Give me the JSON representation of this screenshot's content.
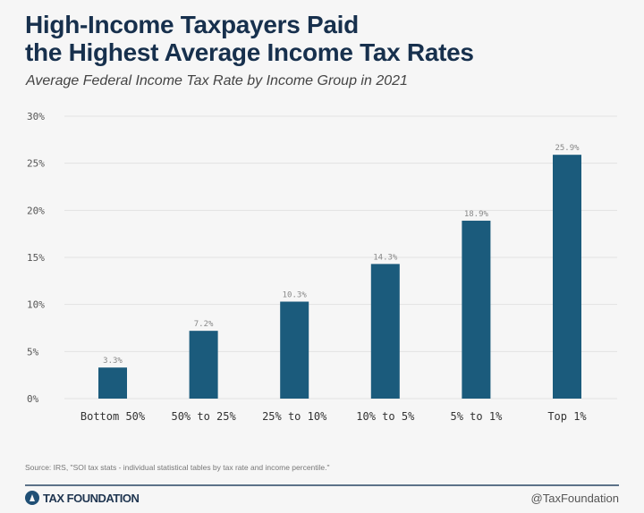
{
  "chart_data": {
    "type": "bar",
    "title": "High-Income Taxpayers Paid the Highest Average Income Tax Rates",
    "title_lines": [
      "High-Income Taxpayers Paid",
      "the Highest Average Income Tax Rates"
    ],
    "subtitle": "Average Federal Income Tax Rate by Income Group in 2021",
    "categories": [
      "Bottom 50%",
      "50% to 25%",
      "25% to 10%",
      "10% to 5%",
      "5% to 1%",
      "Top 1%"
    ],
    "values": [
      3.3,
      7.2,
      10.3,
      14.3,
      18.9,
      25.9
    ],
    "data_labels": [
      "3.3%",
      "7.2%",
      "10.3%",
      "14.3%",
      "18.9%",
      "25.9%"
    ],
    "ylim": [
      0,
      30
    ],
    "yticks": [
      0,
      5,
      10,
      15,
      20,
      25,
      30
    ],
    "ytick_labels": [
      "0%",
      "5%",
      "10%",
      "15%",
      "20%",
      "25%",
      "30%"
    ],
    "grid": true,
    "bar_color": "#1b5b7c"
  },
  "footer": {
    "source": "Source: IRS, \"SOI tax stats - individual statistical tables by tax rate and income percentile.\"",
    "logo_text": "TAX FOUNDATION",
    "handle": "@TaxFoundation"
  }
}
